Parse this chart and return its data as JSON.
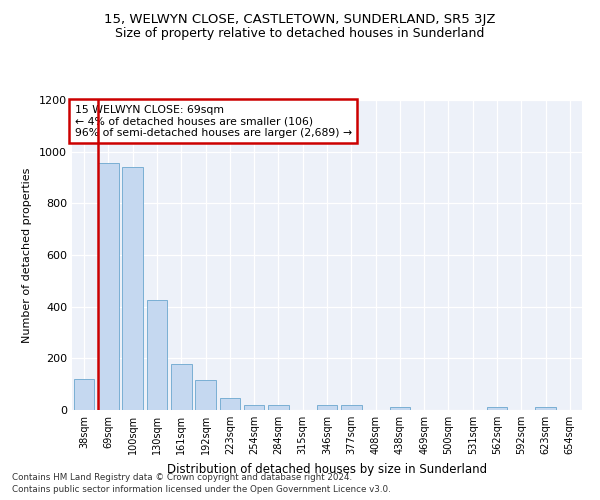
{
  "title": "15, WELWYN CLOSE, CASTLETOWN, SUNDERLAND, SR5 3JZ",
  "subtitle": "Size of property relative to detached houses in Sunderland",
  "xlabel": "Distribution of detached houses by size in Sunderland",
  "ylabel": "Number of detached properties",
  "categories": [
    "38sqm",
    "69sqm",
    "100sqm",
    "130sqm",
    "161sqm",
    "192sqm",
    "223sqm",
    "254sqm",
    "284sqm",
    "315sqm",
    "346sqm",
    "377sqm",
    "408sqm",
    "438sqm",
    "469sqm",
    "500sqm",
    "531sqm",
    "562sqm",
    "592sqm",
    "623sqm",
    "654sqm"
  ],
  "values": [
    120,
    955,
    940,
    425,
    180,
    115,
    45,
    20,
    20,
    0,
    20,
    20,
    0,
    10,
    0,
    0,
    0,
    10,
    0,
    10,
    0
  ],
  "bar_color": "#c5d8f0",
  "bar_edge_color": "#7aafd4",
  "highlight_bar_index": 1,
  "highlight_color": "#cc0000",
  "annotation_text": "15 WELWYN CLOSE: 69sqm\n← 4% of detached houses are smaller (106)\n96% of semi-detached houses are larger (2,689) →",
  "annotation_box_color": "#ffffff",
  "annotation_box_edge_color": "#cc0000",
  "ylim": [
    0,
    1200
  ],
  "yticks": [
    0,
    200,
    400,
    600,
    800,
    1000,
    1200
  ],
  "background_color": "#edf1f9",
  "footer_line1": "Contains HM Land Registry data © Crown copyright and database right 2024.",
  "footer_line2": "Contains public sector information licensed under the Open Government Licence v3.0.",
  "title_fontsize": 9.5,
  "subtitle_fontsize": 9
}
